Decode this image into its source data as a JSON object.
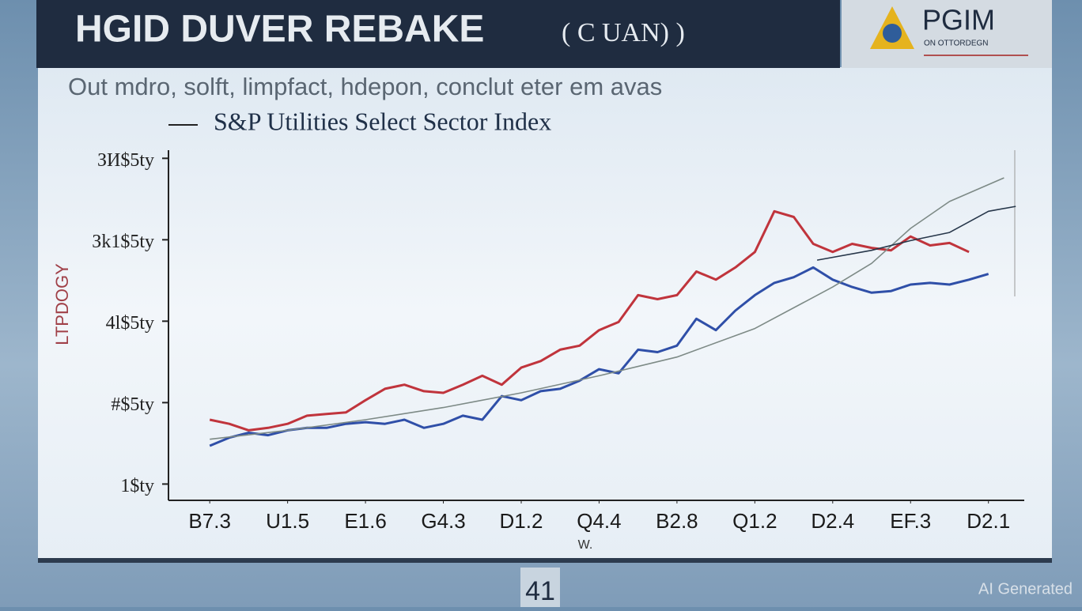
{
  "slide": {
    "header_title": "HGID DUVER REBAKE",
    "header_paren": "( C UAN) )",
    "logo_name": "PGIM",
    "logo_tagline": "ON OTTORDEGN",
    "subtitle": "Out mdro, solft, limpfact, hdepon, conclut eter em avas",
    "page_number": "41",
    "watermark": "AI Generated"
  },
  "chart_data": {
    "type": "line",
    "title": "S&P Utilities Select Sector Index",
    "y_label": "LTPDOGY",
    "x_label": "W.",
    "xlim": [
      -0.53,
      10.46
    ],
    "ylim": [
      0.8,
      5.1
    ],
    "xticks": [
      {
        "value": 0,
        "label": "B7.3"
      },
      {
        "value": 1,
        "label": "U1.5"
      },
      {
        "value": 2,
        "label": "E1.6"
      },
      {
        "value": 3,
        "label": "G4.3"
      },
      {
        "value": 4,
        "label": "D1.2"
      },
      {
        "value": 5,
        "label": "Q4.4"
      },
      {
        "value": 6,
        "label": "B2.8"
      },
      {
        "value": 7,
        "label": "Q1.2"
      },
      {
        "value": 8,
        "label": "D2.4"
      },
      {
        "value": 9,
        "label": "EF.3"
      },
      {
        "value": 10,
        "label": "D2.1"
      }
    ],
    "yticks": [
      {
        "value": 5,
        "label": "ЗИ$5ty"
      },
      {
        "value": 4,
        "label": "Зk1$5ty"
      },
      {
        "value": 3,
        "label": "4l$5ty"
      },
      {
        "value": 2,
        "label": "#$5ty"
      },
      {
        "value": 1,
        "label": "1$ty"
      }
    ],
    "x": [
      0,
      0.25,
      0.5,
      0.75,
      1,
      1.25,
      1.5,
      1.75,
      2,
      2.25,
      2.5,
      2.75,
      3,
      3.25,
      3.5,
      3.75,
      4,
      4.25,
      4.5,
      4.75,
      5,
      5.25,
      5.5,
      5.75,
      6,
      6.25,
      6.5,
      6.75,
      7,
      7.25,
      7.5,
      7.75,
      8,
      8.25,
      8.5,
      8.75,
      9,
      9.25,
      9.5,
      9.75,
      10
    ],
    "series": [
      {
        "color": "#c0343c",
        "values": [
          1.79,
          1.74,
          1.66,
          1.69,
          1.74,
          1.84,
          1.86,
          1.88,
          2.03,
          2.17,
          2.22,
          2.14,
          2.12,
          2.22,
          2.33,
          2.22,
          2.43,
          2.51,
          2.65,
          2.7,
          2.89,
          2.99,
          3.32,
          3.27,
          3.32,
          3.61,
          3.51,
          3.66,
          3.85,
          4.35,
          4.28,
          3.95,
          3.85,
          3.95,
          3.9,
          3.87,
          4.04,
          3.93,
          3.96,
          3.85,
          null
        ]
      },
      {
        "color": "#2f4fa8",
        "values": [
          1.47,
          1.57,
          1.63,
          1.6,
          1.66,
          1.69,
          1.69,
          1.74,
          1.76,
          1.74,
          1.79,
          1.69,
          1.74,
          1.84,
          1.79,
          2.08,
          2.03,
          2.14,
          2.17,
          2.27,
          2.41,
          2.36,
          2.65,
          2.62,
          2.7,
          3.03,
          2.89,
          3.13,
          3.32,
          3.47,
          3.54,
          3.66,
          3.51,
          3.42,
          3.35,
          3.37,
          3.45,
          3.47,
          3.45,
          3.51,
          3.58
        ]
      },
      {
        "color": "#7d8a86",
        "x": [
          0,
          1,
          2,
          3,
          4,
          5,
          6,
          7,
          8,
          8.5,
          9,
          9.5,
          10.2
        ],
        "values": [
          1.55,
          1.66,
          1.79,
          1.94,
          2.12,
          2.33,
          2.56,
          2.91,
          3.42,
          3.71,
          4.14,
          4.47,
          4.76
        ]
      },
      {
        "color": "#27374a",
        "x": [
          7.8,
          8.5,
          9,
          9.5,
          10,
          10.35
        ],
        "values": [
          3.75,
          3.87,
          3.99,
          4.09,
          4.35,
          4.41
        ]
      }
    ]
  }
}
